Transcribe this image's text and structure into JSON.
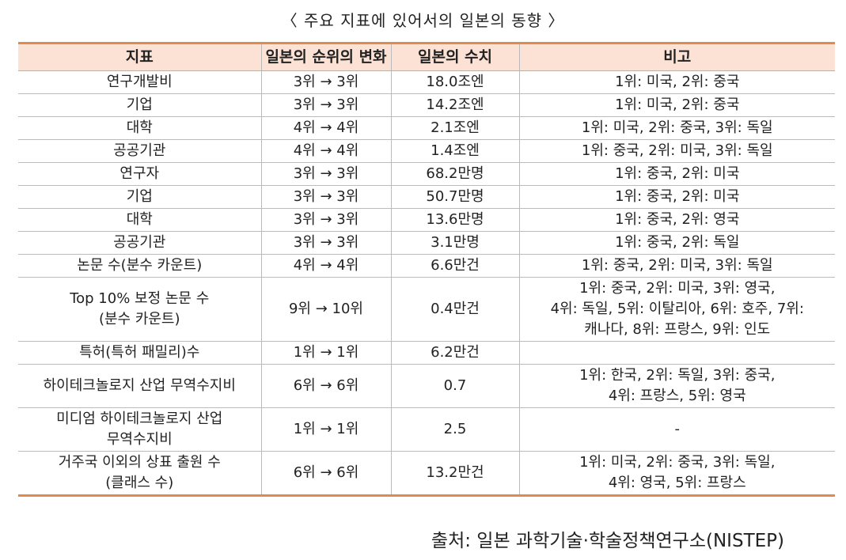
{
  "title": "〈 주요 지표에 있어서의 일본의 동향 〉",
  "headers": [
    "지표",
    "일본의 순위의 변화",
    "일본의 수치",
    "비고"
  ],
  "rows": [
    {
      "indicator": "연구개발비",
      "rank": "3위 → 3위",
      "value": "18.0조엔",
      "note": "1위: 미국, 2위: 중국"
    },
    {
      "indicator": "기업",
      "rank": "3위 → 3위",
      "value": "14.2조엔",
      "note": "1위: 미국, 2위: 중국"
    },
    {
      "indicator": "대학",
      "rank": "4위 → 4위",
      "value": "2.1조엔",
      "note": "1위: 미국, 2위: 중국, 3위: 독일"
    },
    {
      "indicator": "공공기관",
      "rank": "4위 → 4위",
      "value": "1.4조엔",
      "note": "1위: 중국, 2위: 미국, 3위: 독일"
    },
    {
      "indicator": "연구자",
      "rank": "3위 → 3위",
      "value": "68.2만명",
      "note": "1위: 중국, 2위: 미국"
    },
    {
      "indicator": "기업",
      "rank": "3위 → 3위",
      "value": "50.7만명",
      "note": "1위: 중국, 2위: 미국"
    },
    {
      "indicator": "대학",
      "rank": "3위 → 3위",
      "value": "13.6만명",
      "note": "1위: 중국, 2위: 영국"
    },
    {
      "indicator": "공공기관",
      "rank": "3위 → 3위",
      "value": "3.1만명",
      "note": "1위: 중국, 2위: 독일"
    },
    {
      "indicator": "논문 수(분수 카운트)",
      "rank": "4위 → 4위",
      "value": "6.6만건",
      "note": "1위: 중국, 2위: 미국, 3위: 독일"
    },
    {
      "indicator": "Top 10% 보정 논문 수\n(분수 카운트)",
      "rank": "9위 → 10위",
      "value": "0.4만건",
      "note": "1위: 중국, 2위: 미국, 3위: 영국,\n4위: 독일, 5위: 이탈리아, 6위: 호주, 7위:\n캐나다, 8위: 프랑스, 9위: 인도"
    },
    {
      "indicator": "특허(특허 패밀리)수",
      "rank": "1위 → 1위",
      "value": "6.2만건",
      "note": ""
    },
    {
      "indicator": "하이테크놀로지 산업 무역수지비",
      "rank": "6위 → 6위",
      "value": "0.7",
      "note": "1위: 한국, 2위: 독일, 3위: 중국,\n4위: 프랑스, 5위: 영국"
    },
    {
      "indicator": "미디엄 하이테크놀로지 산업\n무역수지비",
      "rank": "1위 → 1위",
      "value": "2.5",
      "note": "-"
    },
    {
      "indicator": "거주국 이외의 상표 출원 수\n(클래스 수)",
      "rank": "6위 → 6위",
      "value": "13.2만건",
      "note": "1위: 미국, 2위: 중국, 3위: 독일,\n4위: 영국, 5위: 프랑스"
    }
  ],
  "source": "출처: 일본 과학기술·학술정책연구소(NISTEP)"
}
